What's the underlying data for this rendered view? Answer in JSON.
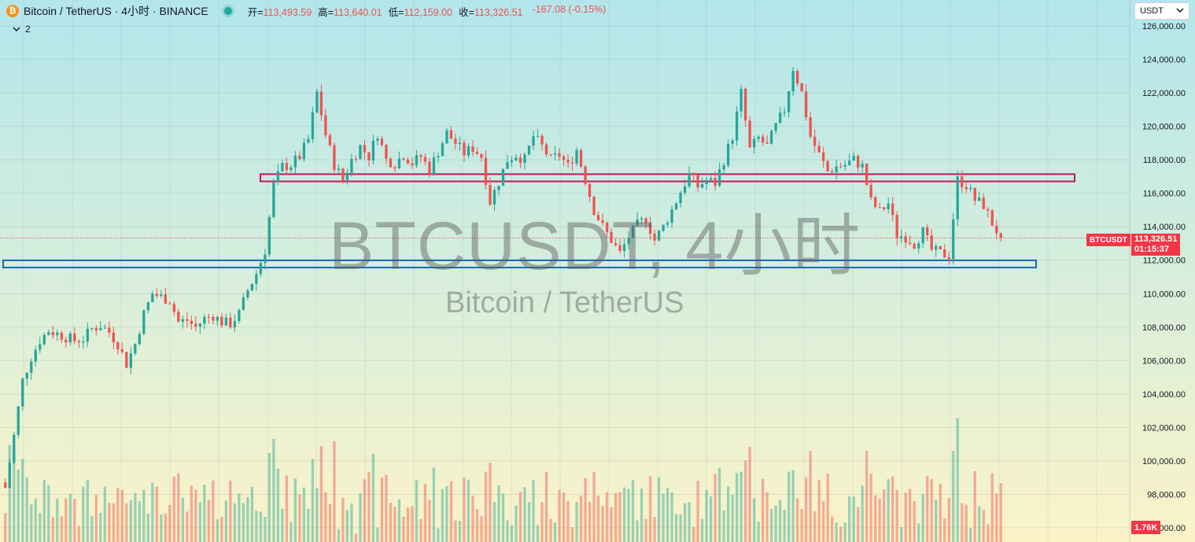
{
  "header": {
    "logo": "₿",
    "symbol_title": "Bitcoin / TetherUS · 4小时 · BINANCE",
    "open_label": "开=",
    "open": "113,493.59",
    "high_label": "高=",
    "high": "113,640.01",
    "low_label": "低=",
    "low": "112,159.00",
    "close_label": "收=",
    "close": "113,326.51",
    "change": "-167.08 (-0.15%)",
    "indicators_toggle": "2"
  },
  "currency_select": {
    "value": "USDT"
  },
  "watermark": {
    "main": "BTCUSDT, 4小时",
    "sub": "Bitcoin / TetherUS"
  },
  "price_axis": {
    "ticks": [
      "126,000.00",
      "124,000.00",
      "122,000.00",
      "120,000.00",
      "118,000.00",
      "116,000.00",
      "114,000.00",
      "112,000.00",
      "110,000.00",
      "108,000.00",
      "106,000.00",
      "104,000.00",
      "102,000.00",
      "100,000.00",
      "98,000.00",
      "96,000.00"
    ],
    "symbol_tag": "BTCUSDT",
    "last_price": "113,326.51",
    "countdown": "01:15:37",
    "volume_tag": "1.76K"
  },
  "colors": {
    "up": "#26a69a",
    "down": "#ef5350",
    "resistance_zone": "#c2185b",
    "support_zone": "#1565c0",
    "tag": "#f23645"
  },
  "chart_data": {
    "type": "candlestick",
    "symbol": "BTCUSDT",
    "timeframe": "4小时",
    "exchange": "BINANCE",
    "ylim": [
      96000,
      126500
    ],
    "last_price": 113326.51,
    "zones": [
      {
        "name": "resistance",
        "low": 116850,
        "high": 117000,
        "color": "#c2185b"
      },
      {
        "name": "support",
        "low": 111700,
        "high": 111850,
        "color": "#1565c0"
      }
    ],
    "close_path": [
      [
        0,
        98400
      ],
      [
        2,
        101500
      ],
      [
        4,
        104800
      ],
      [
        6,
        106200
      ],
      [
        8,
        107200
      ],
      [
        10,
        107800
      ],
      [
        12,
        107600
      ],
      [
        14,
        107400
      ],
      [
        16,
        107200
      ],
      [
        18,
        107300
      ],
      [
        20,
        107900
      ],
      [
        22,
        108100
      ],
      [
        24,
        107700
      ],
      [
        26,
        107000
      ],
      [
        28,
        105800
      ],
      [
        30,
        107000
      ],
      [
        32,
        108800
      ],
      [
        34,
        110000
      ],
      [
        36,
        109800
      ],
      [
        38,
        109600
      ],
      [
        40,
        108300
      ],
      [
        42,
        108400
      ],
      [
        44,
        108000
      ],
      [
        46,
        108500
      ],
      [
        48,
        108700
      ],
      [
        50,
        108300
      ],
      [
        52,
        108200
      ],
      [
        54,
        108800
      ],
      [
        56,
        110200
      ],
      [
        58,
        111200
      ],
      [
        60,
        112600
      ],
      [
        62,
        116500
      ],
      [
        64,
        117600
      ],
      [
        66,
        117700
      ],
      [
        68,
        118200
      ],
      [
        70,
        119200
      ],
      [
        72,
        122000
      ],
      [
        74,
        119500
      ],
      [
        76,
        117700
      ],
      [
        78,
        116800
      ],
      [
        80,
        118000
      ],
      [
        82,
        118800
      ],
      [
        84,
        118200
      ],
      [
        86,
        119600
      ],
      [
        88,
        118000
      ],
      [
        90,
        117800
      ],
      [
        92,
        118300
      ],
      [
        94,
        117800
      ],
      [
        96,
        118200
      ],
      [
        98,
        117400
      ],
      [
        100,
        118500
      ],
      [
        102,
        119600
      ],
      [
        104,
        119000
      ],
      [
        106,
        118400
      ],
      [
        108,
        118700
      ],
      [
        110,
        118200
      ],
      [
        112,
        115500
      ],
      [
        114,
        116700
      ],
      [
        116,
        118000
      ],
      [
        118,
        118300
      ],
      [
        120,
        118000
      ],
      [
        122,
        119400
      ],
      [
        124,
        118800
      ],
      [
        126,
        118000
      ],
      [
        128,
        118300
      ],
      [
        130,
        117600
      ],
      [
        132,
        118600
      ],
      [
        134,
        116800
      ],
      [
        136,
        115000
      ],
      [
        138,
        114000
      ],
      [
        140,
        113200
      ],
      [
        142,
        112400
      ],
      [
        144,
        113400
      ],
      [
        146,
        114100
      ],
      [
        148,
        114500
      ],
      [
        150,
        113200
      ],
      [
        152,
        114000
      ],
      [
        154,
        115000
      ],
      [
        156,
        116100
      ],
      [
        158,
        117100
      ],
      [
        160,
        116400
      ],
      [
        162,
        116800
      ],
      [
        164,
        116600
      ],
      [
        166,
        118000
      ],
      [
        168,
        119400
      ],
      [
        170,
        122000
      ],
      [
        172,
        118600
      ],
      [
        174,
        119300
      ],
      [
        176,
        118800
      ],
      [
        178,
        120000
      ],
      [
        180,
        121000
      ],
      [
        182,
        123500
      ],
      [
        184,
        122000
      ],
      [
        186,
        119400
      ],
      [
        188,
        118300
      ],
      [
        190,
        117300
      ],
      [
        192,
        117600
      ],
      [
        194,
        117700
      ],
      [
        196,
        118000
      ],
      [
        198,
        117600
      ],
      [
        200,
        115500
      ],
      [
        202,
        114900
      ],
      [
        204,
        115400
      ],
      [
        206,
        113500
      ],
      [
        208,
        113400
      ],
      [
        210,
        113000
      ],
      [
        212,
        113700
      ],
      [
        214,
        112600
      ],
      [
        216,
        112400
      ],
      [
        218,
        112300
      ],
      [
        220,
        116800
      ],
      [
        222,
        116500
      ],
      [
        224,
        115600
      ],
      [
        226,
        115300
      ],
      [
        228,
        114200
      ],
      [
        230,
        113326.51
      ]
    ],
    "volume_max_label": "1.76K"
  }
}
